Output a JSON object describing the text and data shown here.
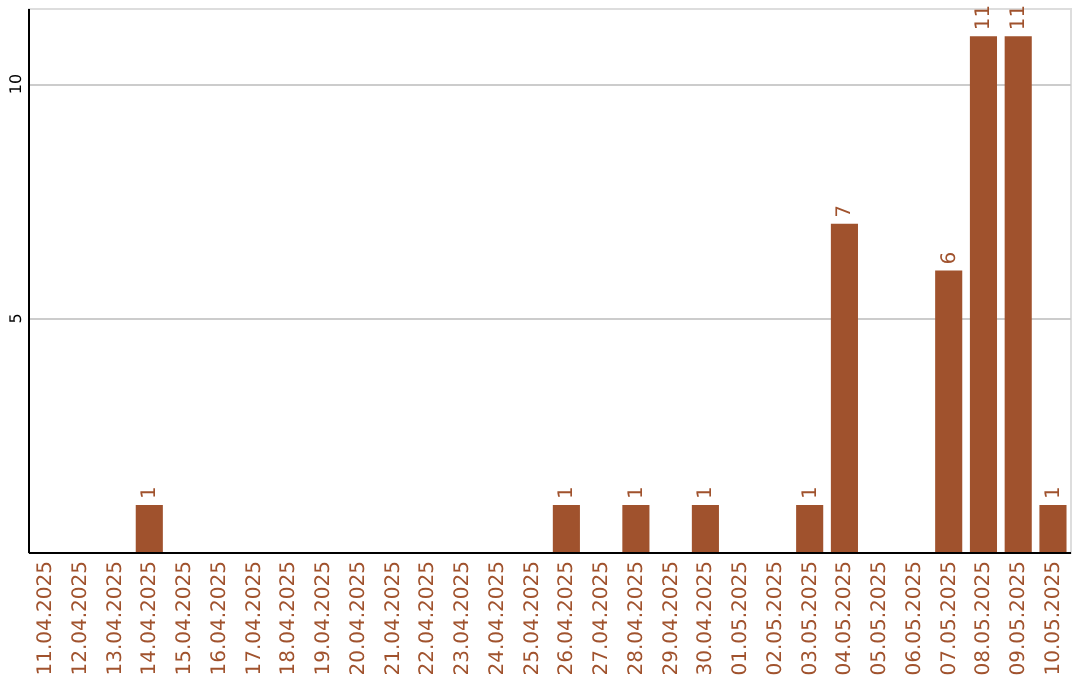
{
  "chart_data": {
    "type": "bar",
    "categories": [
      "11.04.2025",
      "12.04.2025",
      "13.04.2025",
      "14.04.2025",
      "15.04.2025",
      "16.04.2025",
      "17.04.2025",
      "18.04.2025",
      "19.04.2025",
      "20.04.2025",
      "21.04.2025",
      "22.04.2025",
      "23.04.2025",
      "24.04.2025",
      "25.04.2025",
      "26.04.2025",
      "27.04.2025",
      "28.04.2025",
      "29.04.2025",
      "30.04.2025",
      "01.05.2025",
      "02.05.2025",
      "03.05.2025",
      "04.05.2025",
      "05.05.2025",
      "06.05.2025",
      "07.05.2025",
      "08.05.2025",
      "09.05.2025",
      "10.05.2025"
    ],
    "values": [
      null,
      null,
      null,
      1,
      null,
      null,
      null,
      null,
      null,
      null,
      null,
      null,
      null,
      null,
      null,
      1,
      null,
      1,
      null,
      1,
      null,
      null,
      1,
      7,
      null,
      null,
      6,
      11,
      11,
      1
    ],
    "color": "#a0522d",
    "ylim": [
      0,
      11.6
    ],
    "yticks": [
      5,
      10
    ],
    "grid": "y",
    "data_labels": true
  }
}
